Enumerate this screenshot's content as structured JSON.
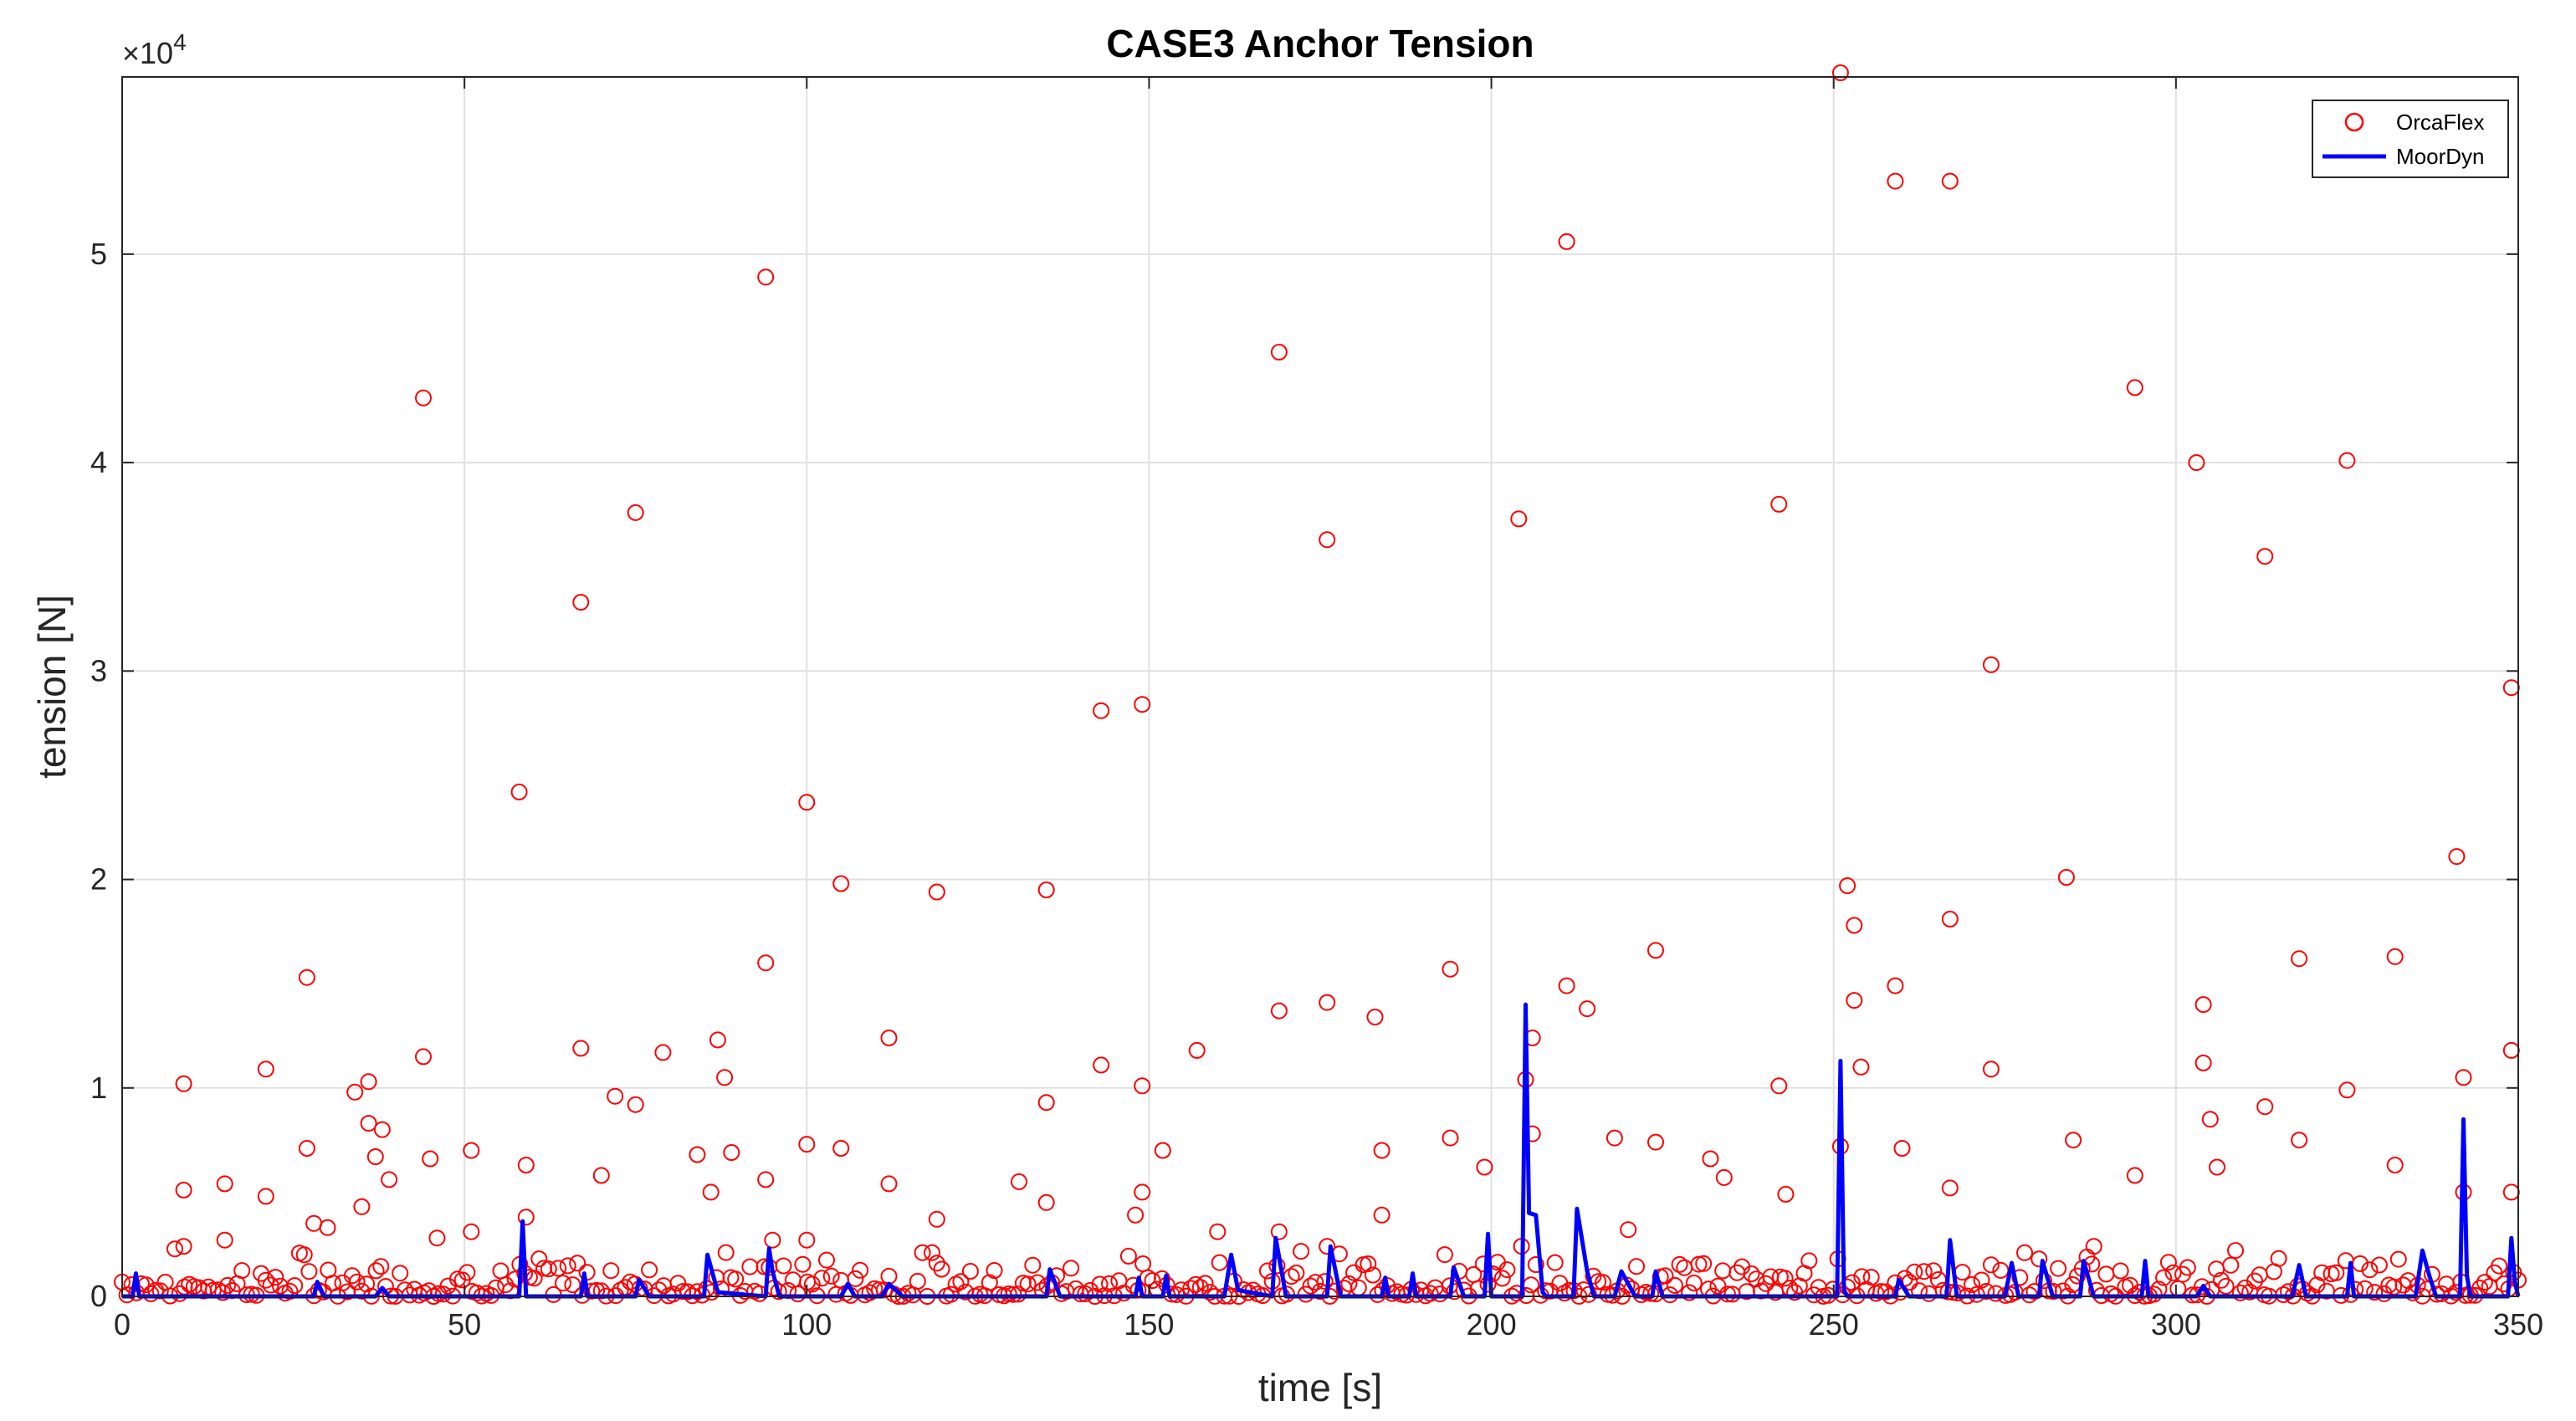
{
  "chart_data": {
    "type": "scatter",
    "title": "CASE3 Anchor Tension",
    "xlabel": "time [s]",
    "ylabel": "tension [N]",
    "y_exponent_label": "×10",
    "y_exponent_power": "4",
    "xlim": [
      0,
      350
    ],
    "ylim": [
      0,
      58500
    ],
    "x_ticks": [
      0,
      50,
      100,
      150,
      200,
      250,
      300,
      350
    ],
    "x_tick_labels": [
      "0",
      "50",
      "100",
      "150",
      "200",
      "250",
      "300",
      "350"
    ],
    "y_ticks": [
      0,
      10000,
      20000,
      30000,
      40000,
      50000
    ],
    "y_tick_labels": [
      "0",
      "1",
      "2",
      "3",
      "4",
      "5"
    ],
    "grid": true,
    "legend_position": "top-right",
    "series": [
      {
        "name": "OrcaFlex",
        "style": "markers",
        "color": "#ff0000",
        "points": [
          [
            9,
            10200
          ],
          [
            9,
            5100
          ],
          [
            9,
            2400
          ],
          [
            15,
            5400
          ],
          [
            15,
            2700
          ],
          [
            21,
            10900
          ],
          [
            21,
            4800
          ],
          [
            27,
            15300
          ],
          [
            27,
            7100
          ],
          [
            28,
            3500
          ],
          [
            30,
            3300
          ],
          [
            34,
            9800
          ],
          [
            35,
            4300
          ],
          [
            36,
            10300
          ],
          [
            36,
            8300
          ],
          [
            37,
            6700
          ],
          [
            38,
            8000
          ],
          [
            39,
            5600
          ],
          [
            44,
            43100
          ],
          [
            44,
            11500
          ],
          [
            45,
            6600
          ],
          [
            46,
            2800
          ],
          [
            51,
            7000
          ],
          [
            51,
            3100
          ],
          [
            58,
            24200
          ],
          [
            59,
            6300
          ],
          [
            59,
            3800
          ],
          [
            67,
            33300
          ],
          [
            67,
            11900
          ],
          [
            70,
            5800
          ],
          [
            72,
            9600
          ],
          [
            75,
            37600
          ],
          [
            75,
            9200
          ],
          [
            79,
            11700
          ],
          [
            84,
            6800
          ],
          [
            86,
            5000
          ],
          [
            87,
            12300
          ],
          [
            88,
            10500
          ],
          [
            89,
            6900
          ],
          [
            94,
            48900
          ],
          [
            94,
            16000
          ],
          [
            94,
            5600
          ],
          [
            95,
            2700
          ],
          [
            100,
            23700
          ],
          [
            100,
            7300
          ],
          [
            100,
            2700
          ],
          [
            105,
            19800
          ],
          [
            105,
            7100
          ],
          [
            112,
            12400
          ],
          [
            112,
            5400
          ],
          [
            119,
            19400
          ],
          [
            119,
            3700
          ],
          [
            131,
            5500
          ],
          [
            135,
            19500
          ],
          [
            135,
            9300
          ],
          [
            135,
            4500
          ],
          [
            143,
            28100
          ],
          [
            143,
            11100
          ],
          [
            148,
            3900
          ],
          [
            149,
            28400
          ],
          [
            149,
            10100
          ],
          [
            149,
            5000
          ],
          [
            152,
            7000
          ],
          [
            157,
            11800
          ],
          [
            160,
            3100
          ],
          [
            169,
            45300
          ],
          [
            169,
            13700
          ],
          [
            169,
            3100
          ],
          [
            176,
            14100
          ],
          [
            176,
            36300
          ],
          [
            176,
            2400
          ],
          [
            183,
            13400
          ],
          [
            184,
            7000
          ],
          [
            184,
            3900
          ],
          [
            194,
            15700
          ],
          [
            194,
            7600
          ],
          [
            199,
            6200
          ],
          [
            204,
            37300
          ],
          [
            205,
            10400
          ],
          [
            206,
            12400
          ],
          [
            206,
            7800
          ],
          [
            211,
            50600
          ],
          [
            211,
            14900
          ],
          [
            214,
            13800
          ],
          [
            218,
            7600
          ],
          [
            220,
            3200
          ],
          [
            224,
            16600
          ],
          [
            224,
            7400
          ],
          [
            232,
            6600
          ],
          [
            234,
            5700
          ],
          [
            242,
            38000
          ],
          [
            242,
            10100
          ],
          [
            243,
            4900
          ],
          [
            251,
            58700
          ],
          [
            251,
            7200
          ],
          [
            252,
            19700
          ],
          [
            253,
            17800
          ],
          [
            253,
            14200
          ],
          [
            254,
            11000
          ],
          [
            259,
            53500
          ],
          [
            259,
            14900
          ],
          [
            260,
            7100
          ],
          [
            267,
            53500
          ],
          [
            267,
            18100
          ],
          [
            267,
            5200
          ],
          [
            273,
            30300
          ],
          [
            273,
            10900
          ],
          [
            284,
            20100
          ],
          [
            285,
            7500
          ],
          [
            288,
            2400
          ],
          [
            294,
            43600
          ],
          [
            294,
            5800
          ],
          [
            303,
            40000
          ],
          [
            304,
            14000
          ],
          [
            304,
            11200
          ],
          [
            305,
            8500
          ],
          [
            306,
            6200
          ],
          [
            313,
            35500
          ],
          [
            313,
            9100
          ],
          [
            318,
            16200
          ],
          [
            318,
            7500
          ],
          [
            325,
            40100
          ],
          [
            325,
            9900
          ],
          [
            332,
            16300
          ],
          [
            332,
            6300
          ],
          [
            341,
            21100
          ],
          [
            342,
            10500
          ],
          [
            342,
            5000
          ],
          [
            349,
            29200
          ],
          [
            349,
            11800
          ],
          [
            349,
            5000
          ]
        ]
      },
      {
        "name": "MoorDyn",
        "style": "line",
        "color": "#0000ff",
        "points": [
          [
            0,
            0
          ],
          [
            1.5,
            0
          ],
          [
            2,
            1100
          ],
          [
            2.5,
            0
          ],
          [
            28,
            0
          ],
          [
            28.5,
            700
          ],
          [
            29.5,
            0
          ],
          [
            37,
            0
          ],
          [
            38,
            400
          ],
          [
            39,
            0
          ],
          [
            58,
            0
          ],
          [
            58.5,
            3600
          ],
          [
            59,
            0
          ],
          [
            67,
            0
          ],
          [
            67.5,
            1100
          ],
          [
            68,
            0
          ],
          [
            75,
            0
          ],
          [
            75.5,
            800
          ],
          [
            77,
            0
          ],
          [
            85,
            0
          ],
          [
            85.5,
            2000
          ],
          [
            87,
            200
          ],
          [
            94,
            0
          ],
          [
            94.5,
            2300
          ],
          [
            95,
            1200
          ],
          [
            96,
            0
          ],
          [
            105,
            0
          ],
          [
            106,
            600
          ],
          [
            107,
            0
          ],
          [
            111,
            0
          ],
          [
            112,
            600
          ],
          [
            114,
            0
          ],
          [
            135,
            0
          ],
          [
            135.5,
            1300
          ],
          [
            137,
            0
          ],
          [
            148,
            0
          ],
          [
            148.5,
            900
          ],
          [
            149,
            0
          ],
          [
            152,
            0
          ],
          [
            152.5,
            1000
          ],
          [
            153,
            0
          ],
          [
            161,
            0
          ],
          [
            162,
            2000
          ],
          [
            163,
            300
          ],
          [
            168,
            0
          ],
          [
            168.5,
            2800
          ],
          [
            170,
            0
          ],
          [
            176,
            0
          ],
          [
            176.5,
            2400
          ],
          [
            178,
            0
          ],
          [
            184,
            0
          ],
          [
            184.5,
            900
          ],
          [
            185,
            0
          ],
          [
            188,
            0
          ],
          [
            188.5,
            1100
          ],
          [
            189,
            0
          ],
          [
            194,
            0
          ],
          [
            194.5,
            1400
          ],
          [
            196,
            0
          ],
          [
            199,
            0
          ],
          [
            199.5,
            3000
          ],
          [
            200,
            0
          ],
          [
            204.5,
            0
          ],
          [
            205,
            14000
          ],
          [
            205.5,
            4000
          ],
          [
            206.5,
            3900
          ],
          [
            207.5,
            200
          ],
          [
            208,
            0
          ],
          [
            212,
            0
          ],
          [
            212.5,
            4200
          ],
          [
            214,
            1200
          ],
          [
            215,
            0
          ],
          [
            218,
            0
          ],
          [
            219,
            1200
          ],
          [
            221,
            0
          ],
          [
            223.5,
            0
          ],
          [
            224,
            1200
          ],
          [
            225,
            0
          ],
          [
            250.5,
            0
          ],
          [
            251,
            11300
          ],
          [
            251.5,
            300
          ],
          [
            252,
            0
          ],
          [
            259,
            0
          ],
          [
            259.5,
            800
          ],
          [
            261,
            0
          ],
          [
            266.5,
            0
          ],
          [
            267,
            2700
          ],
          [
            268,
            0
          ],
          [
            275,
            0
          ],
          [
            276,
            1600
          ],
          [
            277,
            0
          ],
          [
            280,
            0
          ],
          [
            280.5,
            1700
          ],
          [
            282,
            0
          ],
          [
            286,
            0
          ],
          [
            286.5,
            1700
          ],
          [
            288,
            0
          ],
          [
            295,
            0
          ],
          [
            295.5,
            1700
          ],
          [
            296,
            0
          ],
          [
            303,
            0
          ],
          [
            304,
            500
          ],
          [
            305,
            0
          ],
          [
            317,
            0
          ],
          [
            318,
            1500
          ],
          [
            319,
            0
          ],
          [
            325,
            0
          ],
          [
            325.5,
            1600
          ],
          [
            326,
            0
          ],
          [
            335,
            0
          ],
          [
            336,
            2200
          ],
          [
            337,
            1000
          ],
          [
            338,
            0
          ],
          [
            341.5,
            0
          ],
          [
            342,
            8500
          ],
          [
            342.5,
            1000
          ],
          [
            343,
            0
          ],
          [
            348.5,
            0
          ],
          [
            349,
            2800
          ],
          [
            349.5,
            700
          ],
          [
            350,
            0
          ]
        ]
      }
    ]
  }
}
